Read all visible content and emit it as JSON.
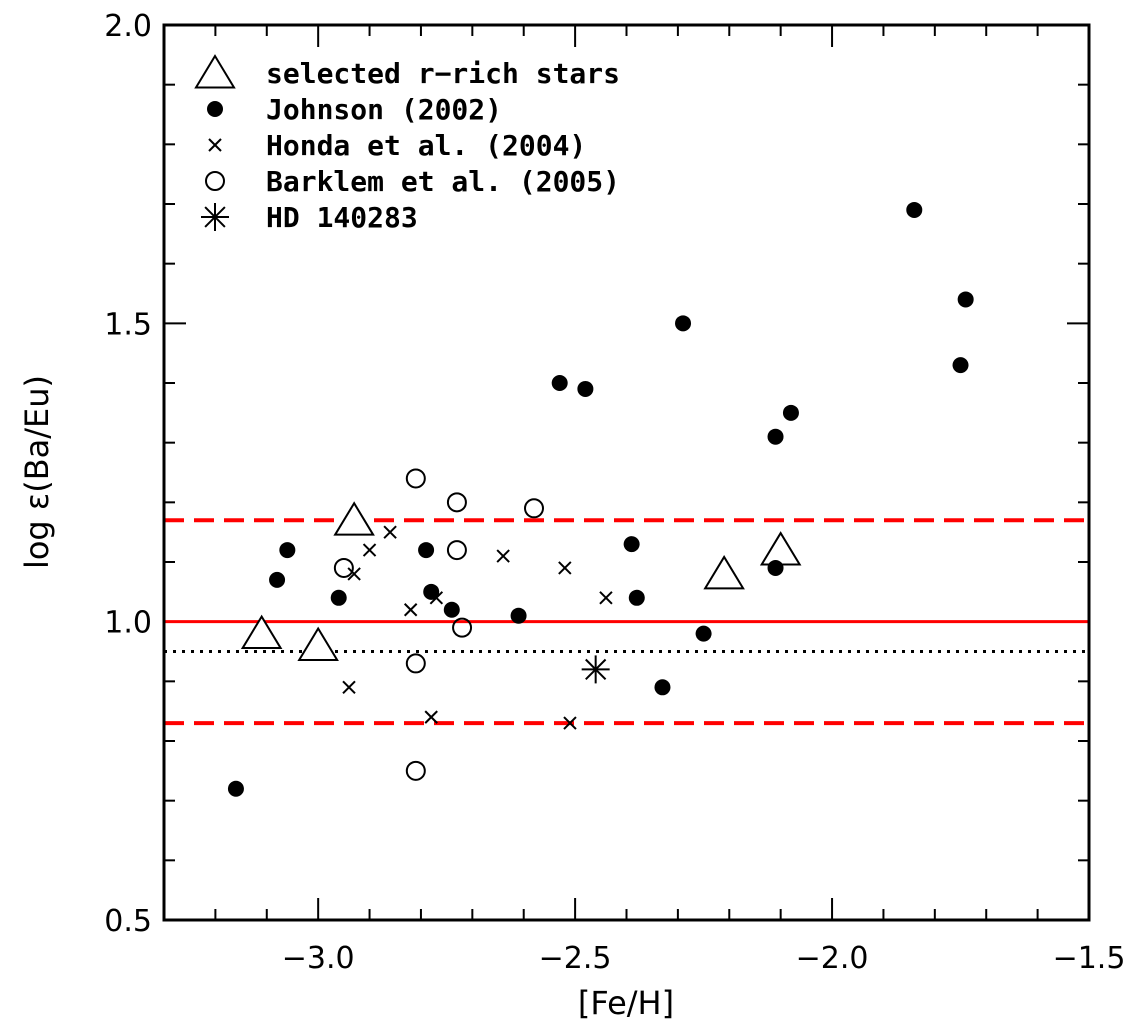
{
  "chart_data": {
    "type": "scatter",
    "xlabel": "[Fe/H]",
    "ylabel": "log ε(Ba/Eu)",
    "xlim": [
      -3.3,
      -1.5
    ],
    "ylim": [
      0.5,
      2.0
    ],
    "x_ticks": [
      -3.0,
      -2.5,
      -2.0,
      -1.5
    ],
    "x_tick_labels": [
      "−3.0",
      "−2.5",
      "−2.0",
      "−1.5"
    ],
    "x_minor_step": 0.1,
    "y_ticks": [
      0.5,
      1.0,
      1.5,
      2.0
    ],
    "y_tick_labels": [
      "0.5",
      "1.0",
      "1.5",
      "2.0"
    ],
    "y_minor_step": 0.1,
    "grid": false,
    "legend_position": "top-left",
    "lines": [
      {
        "y": 1.0,
        "style": "solid",
        "color": "#ff0000"
      },
      {
        "y": 1.17,
        "style": "dashed",
        "color": "#ff0000"
      },
      {
        "y": 0.83,
        "style": "dashed",
        "color": "#ff0000"
      },
      {
        "y": 0.95,
        "style": "dotted",
        "color": "#000000"
      }
    ],
    "series": [
      {
        "name": "selected r−rich stars",
        "marker": "triangle",
        "points": [
          [
            -3.11,
            0.98
          ],
          [
            -3.0,
            0.96
          ],
          [
            -2.93,
            1.17
          ],
          [
            -2.21,
            1.08
          ],
          [
            -2.1,
            1.12
          ]
        ]
      },
      {
        "name": "Johnson (2002)",
        "marker": "filled-circle",
        "points": [
          [
            -3.16,
            0.72
          ],
          [
            -3.08,
            1.07
          ],
          [
            -3.06,
            1.12
          ],
          [
            -2.96,
            1.04
          ],
          [
            -2.79,
            1.12
          ],
          [
            -2.78,
            1.05
          ],
          [
            -2.74,
            1.02
          ],
          [
            -2.61,
            1.01
          ],
          [
            -2.53,
            1.4
          ],
          [
            -2.48,
            1.39
          ],
          [
            -2.39,
            1.13
          ],
          [
            -2.38,
            1.04
          ],
          [
            -2.33,
            0.89
          ],
          [
            -2.29,
            1.5
          ],
          [
            -2.25,
            0.98
          ],
          [
            -2.11,
            1.31
          ],
          [
            -2.11,
            1.09
          ],
          [
            -2.08,
            1.35
          ],
          [
            -1.84,
            1.69
          ],
          [
            -1.75,
            1.43
          ],
          [
            -1.74,
            1.54
          ]
        ]
      },
      {
        "name": "Honda et al. (2004)",
        "marker": "cross",
        "points": [
          [
            -2.94,
            0.89
          ],
          [
            -2.93,
            1.08
          ],
          [
            -2.9,
            1.12
          ],
          [
            -2.86,
            1.15
          ],
          [
            -2.82,
            1.02
          ],
          [
            -2.78,
            0.84
          ],
          [
            -2.77,
            1.04
          ],
          [
            -2.64,
            1.11
          ],
          [
            -2.52,
            1.09
          ],
          [
            -2.51,
            0.83
          ],
          [
            -2.44,
            1.04
          ]
        ]
      },
      {
        "name": "Barklem et al. (2005)",
        "marker": "open-circle",
        "points": [
          [
            -2.95,
            1.09
          ],
          [
            -2.81,
            1.24
          ],
          [
            -2.81,
            0.93
          ],
          [
            -2.81,
            0.75
          ],
          [
            -2.73,
            1.2
          ],
          [
            -2.73,
            1.12
          ],
          [
            -2.72,
            0.99
          ],
          [
            -2.58,
            1.19
          ]
        ]
      },
      {
        "name": "HD 140283",
        "marker": "asterisk",
        "points": [
          [
            -2.46,
            0.92
          ]
        ]
      }
    ]
  }
}
